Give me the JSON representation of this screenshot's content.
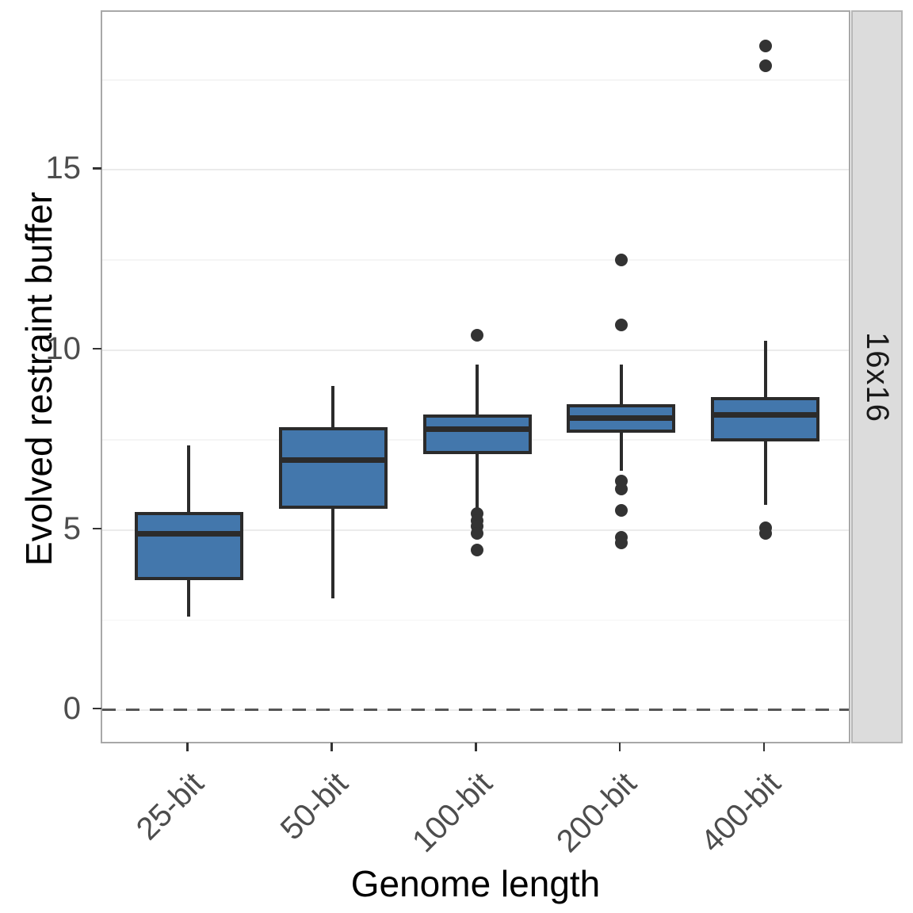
{
  "chart_data": {
    "type": "boxplot",
    "title": "",
    "xlabel": "Genome length",
    "ylabel": "Evolved restraint buffer",
    "facet_label": "16x16",
    "categories": [
      "25-bit",
      "50-bit",
      "100-bit",
      "200-bit",
      "400-bit"
    ],
    "y_ticks": [
      0,
      5,
      10,
      15
    ],
    "y_minor_ticks": [
      2.5,
      7.5,
      12.5,
      17.5
    ],
    "ylim": [
      -0.97,
      19.39
    ],
    "x_domain": [
      0.4,
      5.6
    ],
    "reference_line_y": 0,
    "grid": "horizontal-only",
    "legend_position": "none",
    "boxes": [
      {
        "category": "25-bit",
        "whisker_low": 2.6,
        "q1": 3.6,
        "median": 4.9,
        "q3": 5.5,
        "whisker_high": 7.35,
        "outliers": []
      },
      {
        "category": "50-bit",
        "whisker_low": 3.1,
        "q1": 5.6,
        "median": 6.95,
        "q3": 7.85,
        "whisker_high": 9.0,
        "outliers": []
      },
      {
        "category": "100-bit",
        "whisker_low": 5.6,
        "q1": 7.1,
        "median": 7.8,
        "q3": 8.2,
        "whisker_high": 9.6,
        "outliers": [
          10.4,
          5.45,
          5.25,
          5.1,
          4.9,
          4.45
        ]
      },
      {
        "category": "200-bit",
        "whisker_low": 6.65,
        "q1": 7.7,
        "median": 8.1,
        "q3": 8.5,
        "whisker_high": 9.6,
        "outliers": [
          12.5,
          10.7,
          6.35,
          6.15,
          5.55,
          4.8,
          4.65
        ]
      },
      {
        "category": "400-bit",
        "whisker_low": 5.7,
        "q1": 7.45,
        "median": 8.2,
        "q3": 8.7,
        "whisker_high": 10.25,
        "outliers": [
          18.45,
          17.9,
          5.05,
          4.9
        ]
      }
    ],
    "colors": {
      "box_fill": "#4377ac",
      "box_border": "#2b2b2b",
      "median": "#2b2b2b",
      "outlier": "#333333",
      "grid_major": "#ebebeb",
      "grid_minor": "#f5f5f5",
      "panel_border": "#a8a8a8",
      "strip_fill": "#dcdcdc",
      "reference_line": "#555555",
      "tick_label": "#4d4d4d",
      "axis_title": "#000000"
    }
  }
}
